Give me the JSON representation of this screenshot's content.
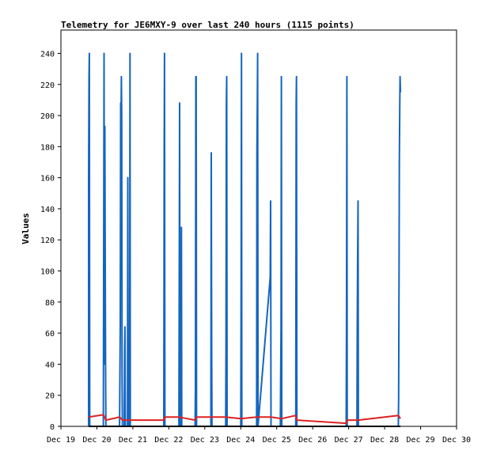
{
  "chart_data": {
    "type": "line",
    "title": "Telemetry for JE6MXY-9 over last 240 hours (1115 points)",
    "xlabel": "",
    "ylabel": "Values",
    "xlim": [
      0,
      11
    ],
    "ylim": [
      0,
      255
    ],
    "x_ticks": [
      {
        "x": 0,
        "label": "Dec 19"
      },
      {
        "x": 1,
        "label": "Dec 20"
      },
      {
        "x": 2,
        "label": "Dec 21"
      },
      {
        "x": 3,
        "label": "Dec 22"
      },
      {
        "x": 4,
        "label": "Dec 23"
      },
      {
        "x": 5,
        "label": "Dec 24"
      },
      {
        "x": 6,
        "label": "Dec 25"
      },
      {
        "x": 7,
        "label": "Dec 26"
      },
      {
        "x": 8,
        "label": "Dec 27"
      },
      {
        "x": 9,
        "label": "Dec 28"
      },
      {
        "x": 10,
        "label": "Dec 29"
      },
      {
        "x": 11,
        "label": "Dec 30"
      }
    ],
    "y_ticks": [
      0,
      20,
      40,
      60,
      80,
      100,
      120,
      140,
      160,
      180,
      200,
      220,
      240
    ],
    "grid": false,
    "series": [
      {
        "color": "#1565c0",
        "points": [
          [
            0.77,
            0
          ],
          [
            0.77,
            160
          ],
          [
            0.78,
            225
          ],
          [
            0.79,
            240
          ],
          [
            0.8,
            0
          ],
          [
            1.18,
            0
          ],
          [
            1.19,
            130
          ],
          [
            1.2,
            240
          ],
          [
            1.21,
            40
          ],
          [
            1.22,
            193
          ],
          [
            1.23,
            120
          ],
          [
            1.24,
            40
          ],
          [
            1.25,
            0
          ],
          [
            1.63,
            0
          ],
          [
            1.64,
            30
          ],
          [
            1.65,
            65
          ],
          [
            1.66,
            208
          ],
          [
            1.67,
            190
          ],
          [
            1.68,
            225
          ],
          [
            1.69,
            200
          ],
          [
            1.7,
            30
          ],
          [
            1.71,
            0
          ],
          [
            1.76,
            0
          ],
          [
            1.77,
            48
          ],
          [
            1.78,
            64
          ],
          [
            1.79,
            0
          ],
          [
            1.85,
            0
          ],
          [
            1.86,
            160
          ],
          [
            1.87,
            30
          ],
          [
            1.88,
            0
          ],
          [
            1.91,
            0
          ],
          [
            1.92,
            240
          ],
          [
            1.93,
            0
          ],
          [
            2.86,
            0
          ],
          [
            2.87,
            176
          ],
          [
            2.88,
            240
          ],
          [
            2.89,
            0
          ],
          [
            3.28,
            0
          ],
          [
            3.29,
            88
          ],
          [
            3.3,
            208
          ],
          [
            3.31,
            0
          ],
          [
            3.34,
            0
          ],
          [
            3.35,
            128
          ],
          [
            3.36,
            0
          ],
          [
            3.73,
            0
          ],
          [
            3.74,
            25
          ],
          [
            3.75,
            225
          ],
          [
            3.76,
            225
          ],
          [
            3.77,
            0
          ],
          [
            4.17,
            0
          ],
          [
            4.18,
            176
          ],
          [
            4.19,
            48
          ],
          [
            4.2,
            0
          ],
          [
            4.58,
            0
          ],
          [
            4.59,
            48
          ],
          [
            4.6,
            208
          ],
          [
            4.61,
            225
          ],
          [
            4.62,
            0
          ],
          [
            5.0,
            0
          ],
          [
            5.01,
            80
          ],
          [
            5.02,
            240
          ],
          [
            5.03,
            0
          ],
          [
            5.44,
            0
          ],
          [
            5.45,
            176
          ],
          [
            5.46,
            208
          ],
          [
            5.47,
            240
          ],
          [
            5.48,
            0
          ],
          [
            5.82,
            96
          ],
          [
            5.83,
            145
          ],
          [
            5.84,
            0
          ],
          [
            6.1,
            0
          ],
          [
            6.11,
            30
          ],
          [
            6.12,
            64
          ],
          [
            6.13,
            225
          ],
          [
            6.14,
            0
          ],
          [
            6.53,
            0
          ],
          [
            6.54,
            208
          ],
          [
            6.55,
            225
          ],
          [
            6.56,
            0
          ],
          [
            7.93,
            0
          ],
          [
            7.94,
            64
          ],
          [
            7.95,
            225
          ],
          [
            7.96,
            0
          ],
          [
            8.23,
            0
          ],
          [
            8.24,
            64
          ],
          [
            8.25,
            110
          ],
          [
            8.26,
            145
          ],
          [
            8.27,
            0
          ],
          [
            9.38,
            0
          ],
          [
            9.39,
            18
          ],
          [
            9.4,
            96
          ],
          [
            9.41,
            170
          ],
          [
            9.42,
            205
          ],
          [
            9.43,
            225
          ],
          [
            9.44,
            215
          ]
        ]
      },
      {
        "color": "#dd2222",
        "points": [
          [
            0.77,
            6
          ],
          [
            1.18,
            7.5
          ],
          [
            1.25,
            4
          ],
          [
            1.63,
            6
          ],
          [
            1.71,
            4
          ],
          [
            2.86,
            4
          ],
          [
            2.89,
            6
          ],
          [
            3.28,
            6
          ],
          [
            3.73,
            4
          ],
          [
            3.77,
            6
          ],
          [
            4.58,
            6
          ],
          [
            5.0,
            5
          ],
          [
            5.44,
            6
          ],
          [
            5.84,
            6
          ],
          [
            6.14,
            5
          ],
          [
            6.53,
            7
          ],
          [
            6.56,
            4
          ],
          [
            7.93,
            2
          ],
          [
            7.96,
            4
          ],
          [
            8.27,
            4
          ],
          [
            9.38,
            7
          ],
          [
            9.44,
            5
          ]
        ]
      },
      {
        "color": "#000000",
        "points": [
          [
            0.77,
            0
          ],
          [
            9.44,
            0
          ]
        ]
      }
    ]
  }
}
